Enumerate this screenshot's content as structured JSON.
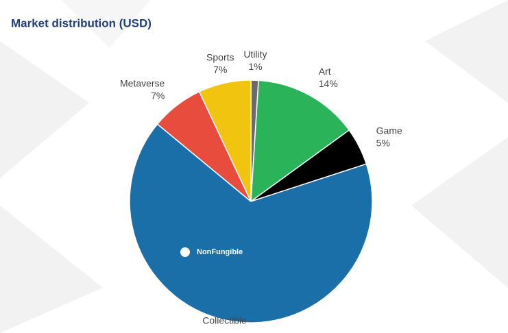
{
  "chart_data": {
    "type": "pie",
    "title": "Market distribution (USD)",
    "watermark": "NonFungible",
    "categories": [
      "Utility",
      "Art",
      "Game",
      "Collectible",
      "Metaverse",
      "Sports"
    ],
    "values": [
      1,
      14,
      5,
      66,
      7,
      7
    ],
    "value_labels": [
      "1%",
      "14%",
      "5%",
      null,
      "7%",
      "7%"
    ],
    "colors": [
      "#6b6b6b",
      "#2bb35a",
      "#000000",
      "#1a6fa8",
      "#e74c3c",
      "#f1c40f"
    ]
  }
}
